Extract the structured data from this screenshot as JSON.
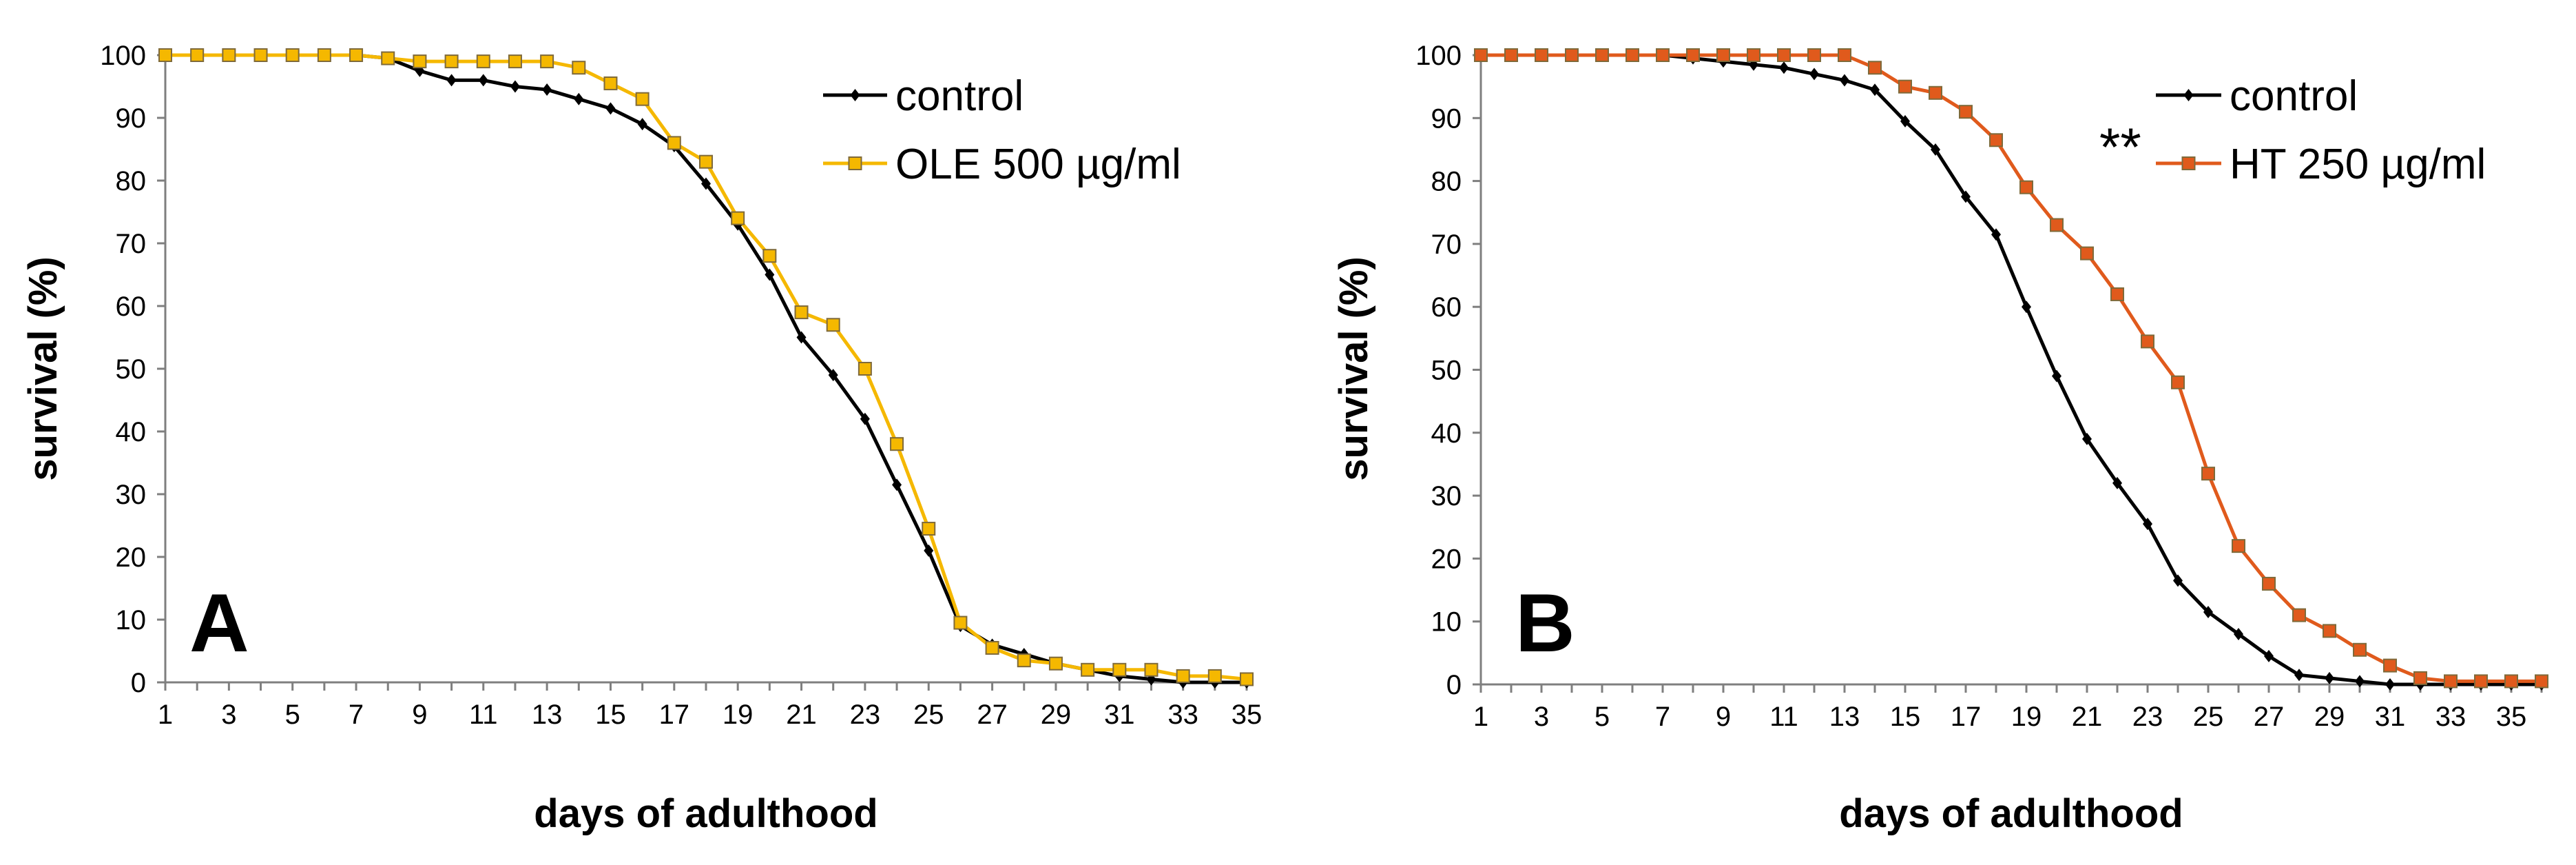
{
  "chart_data": [
    {
      "type": "line",
      "panel_label": "A",
      "xlabel": "days of adulthood",
      "ylabel": "survival (%)",
      "xlim": [
        1,
        35
      ],
      "ylim": [
        0,
        100
      ],
      "x_ticks": [
        1,
        3,
        5,
        7,
        9,
        11,
        13,
        15,
        17,
        19,
        21,
        23,
        25,
        27,
        29,
        31,
        33,
        35
      ],
      "y_ticks": [
        0,
        10,
        20,
        30,
        40,
        50,
        60,
        70,
        80,
        90,
        100
      ],
      "legend_position": "top-right",
      "series": [
        {
          "name": "control",
          "color": "#000000",
          "marker": "diamond",
          "x": [
            1,
            2,
            3,
            4,
            5,
            6,
            7,
            8,
            9,
            10,
            11,
            12,
            13,
            14,
            15,
            16,
            17,
            18,
            19,
            20,
            21,
            22,
            23,
            24,
            25,
            26,
            27,
            28,
            29,
            30,
            31,
            32,
            33,
            34,
            35
          ],
          "values": [
            100,
            100,
            100,
            100,
            100,
            100,
            100,
            99.5,
            97.5,
            96,
            96,
            95,
            94.5,
            93,
            91.5,
            89,
            85.5,
            79.5,
            73,
            65,
            55,
            49,
            42,
            31.5,
            21,
            9,
            6,
            4.5,
            3,
            2,
            1,
            0.5,
            0,
            0,
            0
          ]
        },
        {
          "name": "OLE 500 µg/ml",
          "color": "#f5b800",
          "marker": "square",
          "x": [
            1,
            2,
            3,
            4,
            5,
            6,
            7,
            8,
            9,
            10,
            11,
            12,
            13,
            14,
            15,
            16,
            17,
            18,
            19,
            20,
            21,
            22,
            23,
            24,
            25,
            26,
            27,
            28,
            29,
            30,
            31,
            32,
            33,
            34,
            35
          ],
          "values": [
            100,
            100,
            100,
            100,
            100,
            100,
            100,
            99.5,
            99,
            99,
            99,
            99,
            99,
            98,
            95.5,
            93,
            86,
            83,
            74,
            68,
            59,
            57,
            50,
            38,
            24.5,
            9.5,
            5.5,
            3.5,
            3,
            2,
            2,
            2,
            1,
            1,
            0.5
          ]
        }
      ]
    },
    {
      "type": "line",
      "panel_label": "B",
      "xlabel": "days of adulthood",
      "ylabel": "survival (%)",
      "xlim": [
        1,
        36
      ],
      "ylim": [
        0,
        100
      ],
      "x_ticks": [
        1,
        3,
        5,
        7,
        9,
        11,
        13,
        15,
        17,
        19,
        21,
        23,
        25,
        27,
        29,
        31,
        33,
        35
      ],
      "y_ticks": [
        0,
        10,
        20,
        30,
        40,
        50,
        60,
        70,
        80,
        90,
        100
      ],
      "legend_position": "top-right",
      "annotation": "**",
      "series": [
        {
          "name": "control",
          "color": "#000000",
          "marker": "diamond",
          "x": [
            1,
            2,
            3,
            4,
            5,
            6,
            7,
            8,
            9,
            10,
            11,
            12,
            13,
            14,
            15,
            16,
            17,
            18,
            19,
            20,
            21,
            22,
            23,
            24,
            25,
            26,
            27,
            28,
            29,
            30,
            31,
            32,
            33,
            34,
            35,
            36
          ],
          "values": [
            100,
            100,
            100,
            100,
            100,
            100,
            100,
            99.5,
            99,
            98.5,
            98,
            97,
            96,
            94.5,
            89.5,
            85,
            77.5,
            71.5,
            60,
            49,
            39,
            32,
            25.5,
            16.5,
            11.5,
            8,
            4.5,
            1.5,
            1,
            0.5,
            0,
            0,
            0,
            0,
            0,
            0
          ]
        },
        {
          "name": "HT 250 µg/ml",
          "color": "#e05a1c",
          "marker": "square",
          "x": [
            1,
            2,
            3,
            4,
            5,
            6,
            7,
            8,
            9,
            10,
            11,
            12,
            13,
            14,
            15,
            16,
            17,
            18,
            19,
            20,
            21,
            22,
            23,
            24,
            25,
            26,
            27,
            28,
            29,
            30,
            31,
            32,
            33,
            34,
            35,
            36
          ],
          "values": [
            100,
            100,
            100,
            100,
            100,
            100,
            100,
            100,
            100,
            100,
            100,
            100,
            100,
            98,
            95,
            94,
            91,
            86.5,
            79,
            73,
            68.5,
            62,
            54.5,
            48,
            33.5,
            22,
            16,
            11,
            8.5,
            5.5,
            3,
            1,
            0.5,
            0.5,
            0.5,
            0.5
          ]
        }
      ]
    }
  ]
}
